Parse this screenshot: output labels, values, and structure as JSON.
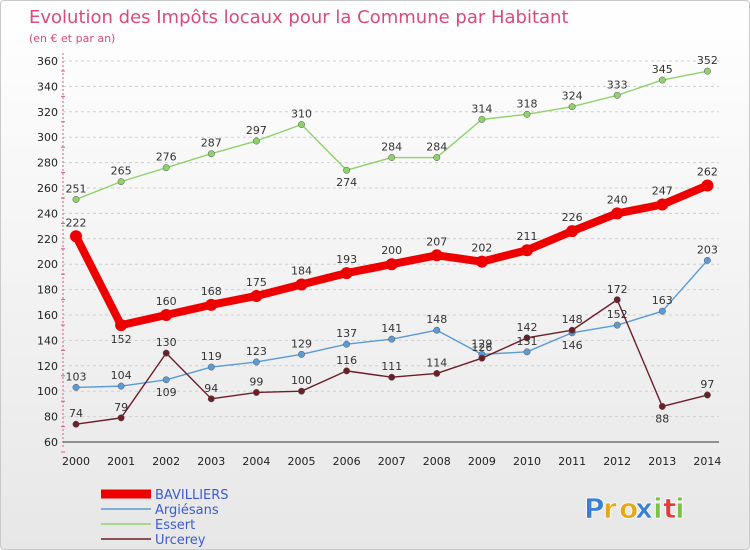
{
  "page": {
    "title": "Evolution des Impôts locaux pour la Commune par Habitant",
    "subtitle": "(en € et par an)"
  },
  "logo": {
    "letters": [
      "P",
      "r",
      "o",
      "x",
      "i",
      "t",
      "i"
    ],
    "colors": [
      "#3a7fd5",
      "#e6a817",
      "#e6a817",
      "#3a7fd5",
      "#7cc242",
      "#e23b3b",
      "#7cc242"
    ]
  },
  "chart_data": {
    "type": "line",
    "title": "Evolution des Impôts locaux pour la Commune par Habitant",
    "subtitle": "(en € et par an)",
    "xlabel": "",
    "ylabel": "",
    "ylim": [
      60,
      360
    ],
    "yticks": [
      60,
      80,
      100,
      120,
      140,
      160,
      180,
      200,
      220,
      240,
      260,
      280,
      300,
      320,
      340,
      360
    ],
    "grid": "horizontal",
    "legend_position": "bottom-left",
    "x": [
      "2000",
      "2001",
      "2002",
      "2003",
      "2004",
      "2005",
      "2006",
      "2007",
      "2008",
      "2009",
      "2010",
      "2011",
      "2012",
      "2013",
      "2014"
    ],
    "series": [
      {
        "name": "BAVILLIERS",
        "color": "#ee0000",
        "values": [
          222,
          152,
          160,
          168,
          175,
          184,
          193,
          200,
          207,
          202,
          211,
          226,
          240,
          247,
          262
        ]
      },
      {
        "name": "Argiésans",
        "color": "#5b9bd5",
        "values": [
          103,
          104,
          109,
          119,
          123,
          129,
          137,
          141,
          148,
          129,
          131,
          146,
          152,
          163,
          203
        ]
      },
      {
        "name": "Essert",
        "color": "#8fd16b",
        "values": [
          251,
          265,
          276,
          287,
          297,
          310,
          274,
          284,
          284,
          314,
          318,
          324,
          333,
          345,
          352
        ]
      },
      {
        "name": "Urcerey",
        "color": "#6b1f27",
        "values": [
          74,
          79,
          130,
          94,
          99,
          100,
          116,
          111,
          114,
          126,
          142,
          148,
          172,
          88,
          97
        ]
      }
    ]
  }
}
